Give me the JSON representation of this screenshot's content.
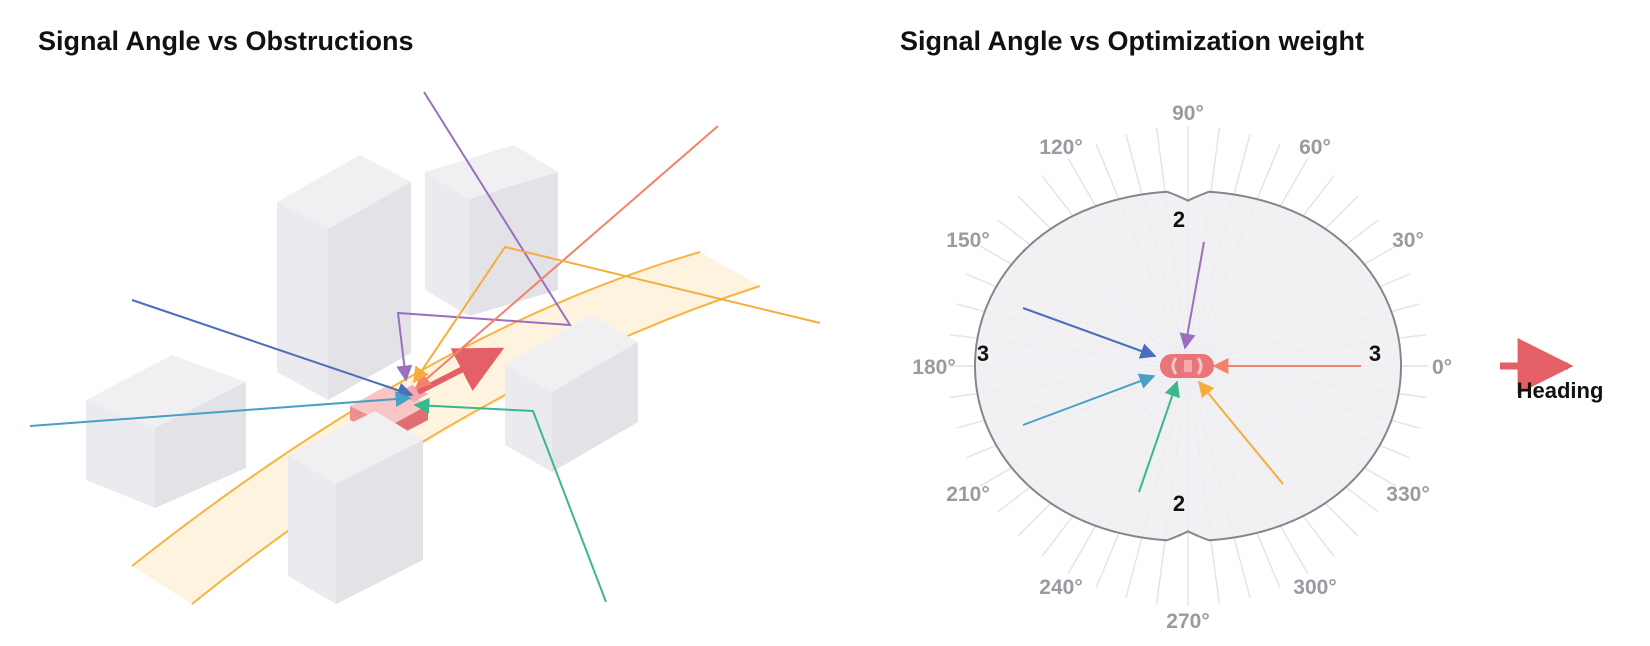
{
  "left_panel": {
    "title": "Signal Angle vs Obstructions"
  },
  "right_panel": {
    "title": "Signal Angle vs Optimization weight",
    "angle_labels": [
      "0°",
      "30°",
      "60°",
      "90°",
      "120°",
      "150°",
      "180°",
      "210°",
      "240°",
      "270°",
      "300°",
      "330°"
    ],
    "weight_labels": {
      "right": "3",
      "left": "3",
      "top": "2",
      "bottom": "2"
    },
    "heading_label": "Heading"
  },
  "colors": {
    "building": "#e3e3e8",
    "road": "#fdf3df",
    "road_edge": "#f7b444",
    "car": "#e9757a",
    "purple": "#9a6fbd",
    "orange": "#f2826a",
    "yellow": "#f7ac3c",
    "blue": "#4a6fba",
    "cyan": "#4a9fc4",
    "green": "#39b88e",
    "polar_fill": "#eeeef2",
    "polar_line": "#85858c"
  },
  "chart_data": {
    "type": "polar",
    "theta_degrees": [
      0,
      30,
      60,
      90,
      120,
      150,
      180,
      210,
      240,
      270,
      300,
      330
    ],
    "weight_at_0": 3,
    "weight_at_90": 2,
    "weight_at_180": 3,
    "weight_at_270": 2,
    "signal_arrows_degrees": [
      0,
      85,
      162,
      200,
      255,
      305
    ]
  }
}
